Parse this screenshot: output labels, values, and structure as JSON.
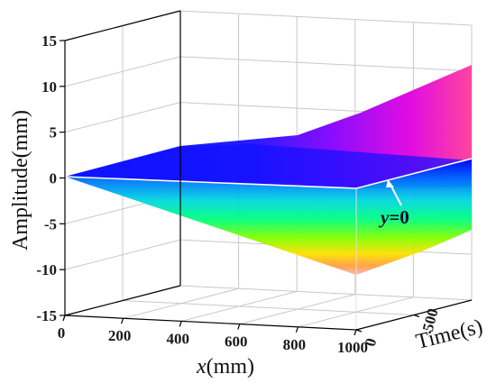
{
  "chart_data": {
    "type": "area",
    "xlabel_var": "x",
    "xlabel_unit": "(mm)",
    "ylabel": "Amplitude(mm)",
    "zlabel": "Time(s)",
    "x_ticks": [
      "0",
      "200",
      "400",
      "600",
      "800",
      "1000"
    ],
    "y_ticks": [
      "15",
      "10",
      "5",
      "0",
      "-5",
      "-10",
      "-15"
    ],
    "z_ticks": [
      "0",
      "500"
    ],
    "xlim": [
      0,
      1000
    ],
    "ylim": [
      -15,
      15
    ],
    "zlim": [
      0,
      1000
    ],
    "grid": true,
    "annotation": {
      "var": "y",
      "text": "=0"
    },
    "surface": {
      "series": [
        {
          "name": "",
          "x": [
            0,
            200,
            400,
            600,
            800,
            1000
          ],
          "y": [
            0,
            1.9,
            3.8,
            5.8,
            8.3,
            11.2
          ]
        },
        {
          "name": "",
          "x": [
            0,
            200,
            400,
            600,
            800,
            1000
          ],
          "y": [
            0,
            -2.0,
            -4.0,
            -6.2,
            -8.6,
            -11.0
          ]
        }
      ]
    },
    "colors": {
      "surface_low": "#0000ff",
      "surface_high": "#ff00cc",
      "surface_lower_bands": [
        "#0000ff",
        "#00a0ff",
        "#00e0c0",
        "#30ff40",
        "#c0ff00",
        "#ffd000",
        "#ff8080"
      ],
      "grid": "#c8c8c8",
      "axis": "#000000"
    }
  }
}
